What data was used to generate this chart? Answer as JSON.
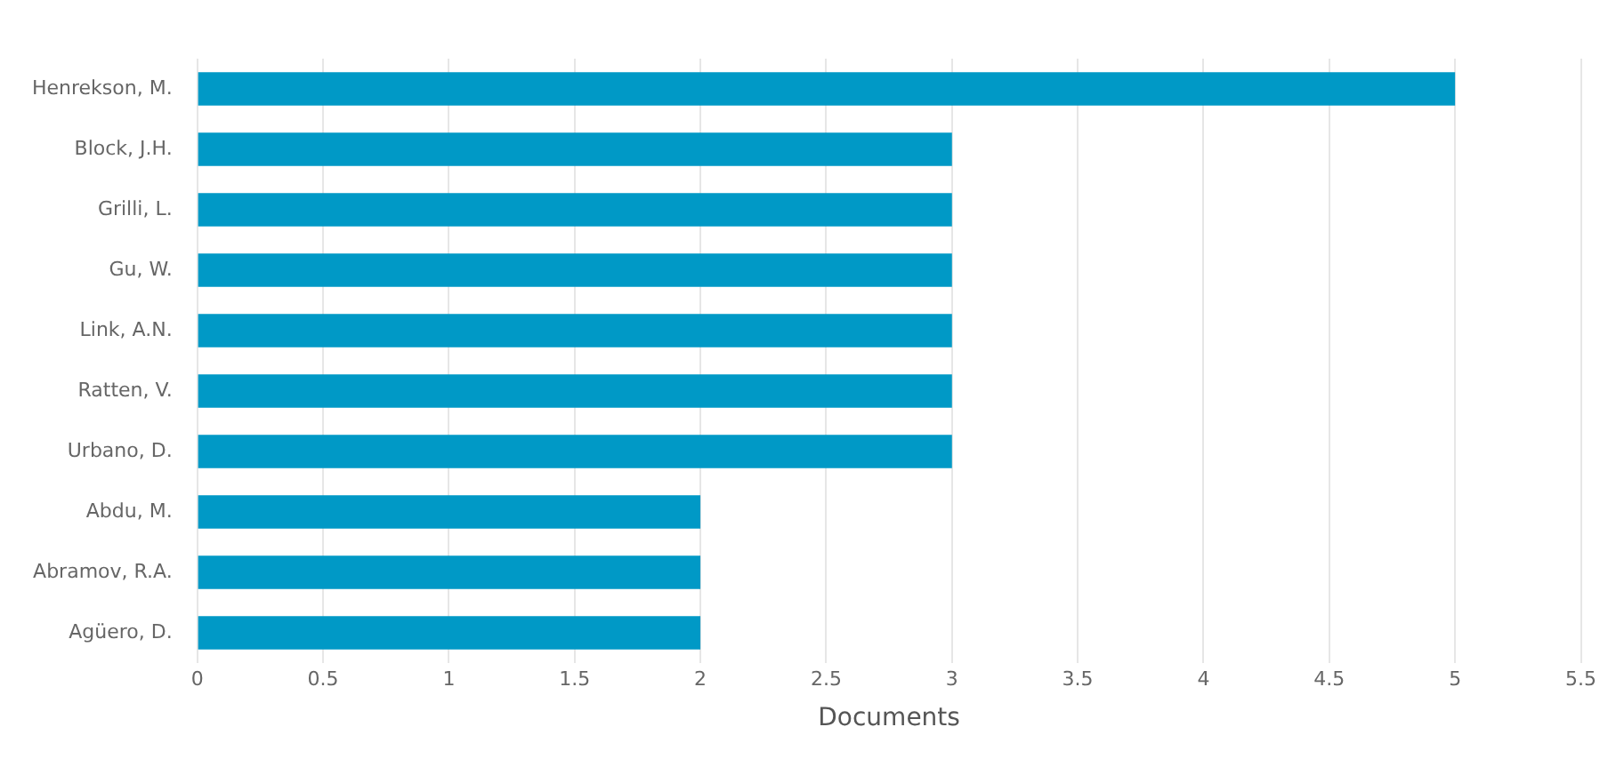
{
  "chart_data": {
    "type": "bar",
    "orientation": "horizontal",
    "xlabel": "Documents",
    "categories": [
      "Henrekson, M.",
      "Block, J.H.",
      "Grilli, L.",
      "Gu, W.",
      "Link, A.N.",
      "Ratten, V.",
      "Urbano, D.",
      "Abdu, M.",
      "Abramov, R.A.",
      "Agüero, D."
    ],
    "values": [
      5,
      3,
      3,
      3,
      3,
      3,
      3,
      2,
      2,
      2
    ],
    "color": "#0099c6",
    "xlim": [
      0,
      5.5
    ],
    "xticks": [
      0,
      0.5,
      1,
      1.5,
      2,
      2.5,
      3,
      3.5,
      4,
      4.5,
      5,
      5.5
    ],
    "grid": "x",
    "legend": false
  }
}
